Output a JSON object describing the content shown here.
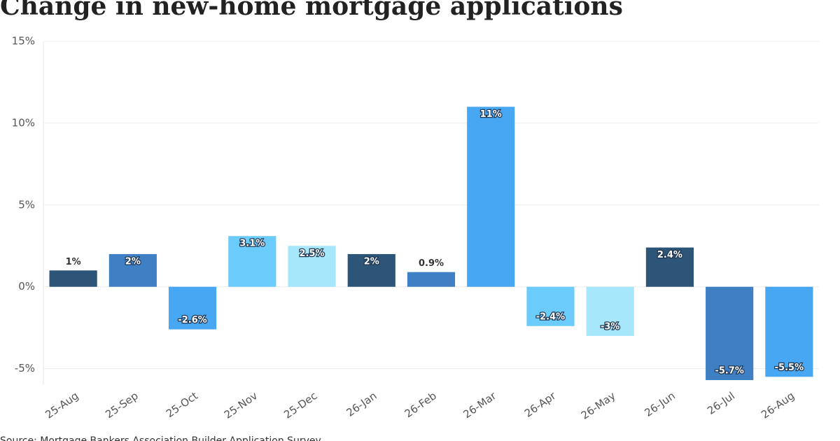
{
  "chart_data": {
    "type": "bar",
    "title": "Change in new-home mortgage applications",
    "source": "Source: Mortgage Bankers Association Builder Application Survey",
    "categories": [
      "25-Aug",
      "25-Sep",
      "25-Oct",
      "25-Nov",
      "25-Dec",
      "26-Jan",
      "26-Feb",
      "26-Mar",
      "26-Apr",
      "26-May",
      "26-Jun",
      "26-Jul",
      "26-Aug"
    ],
    "values": [
      1,
      2,
      -2.6,
      3.1,
      2.5,
      2,
      0.9,
      11,
      -2.4,
      -3,
      2.4,
      -5.7,
      -5.5
    ],
    "value_labels": [
      "1%",
      "2%",
      "-2.6%",
      "3.1%",
      "2.5%",
      "2%",
      "0.9%",
      "11%",
      "-2.4%",
      "-3%",
      "2.4%",
      "-5.7%",
      "-5.5%"
    ],
    "colors": [
      "#2d5577",
      "#3f80c4",
      "#48a7f2",
      "#6bcbfb",
      "#a6e7fb",
      "#2d5577",
      "#3f80c4",
      "#48a7f2",
      "#6bcbfb",
      "#a6e7fb",
      "#2d5577",
      "#3f80c4",
      "#48a7f2"
    ],
    "ylim": [
      -6,
      15
    ],
    "yticks": [
      {
        "value": -5,
        "label": "-5%"
      },
      {
        "value": 0,
        "label": "0%"
      },
      {
        "value": 5,
        "label": "5%"
      },
      {
        "value": 10,
        "label": "10%"
      },
      {
        "value": 15,
        "label": "15%"
      }
    ],
    "grid": true
  }
}
